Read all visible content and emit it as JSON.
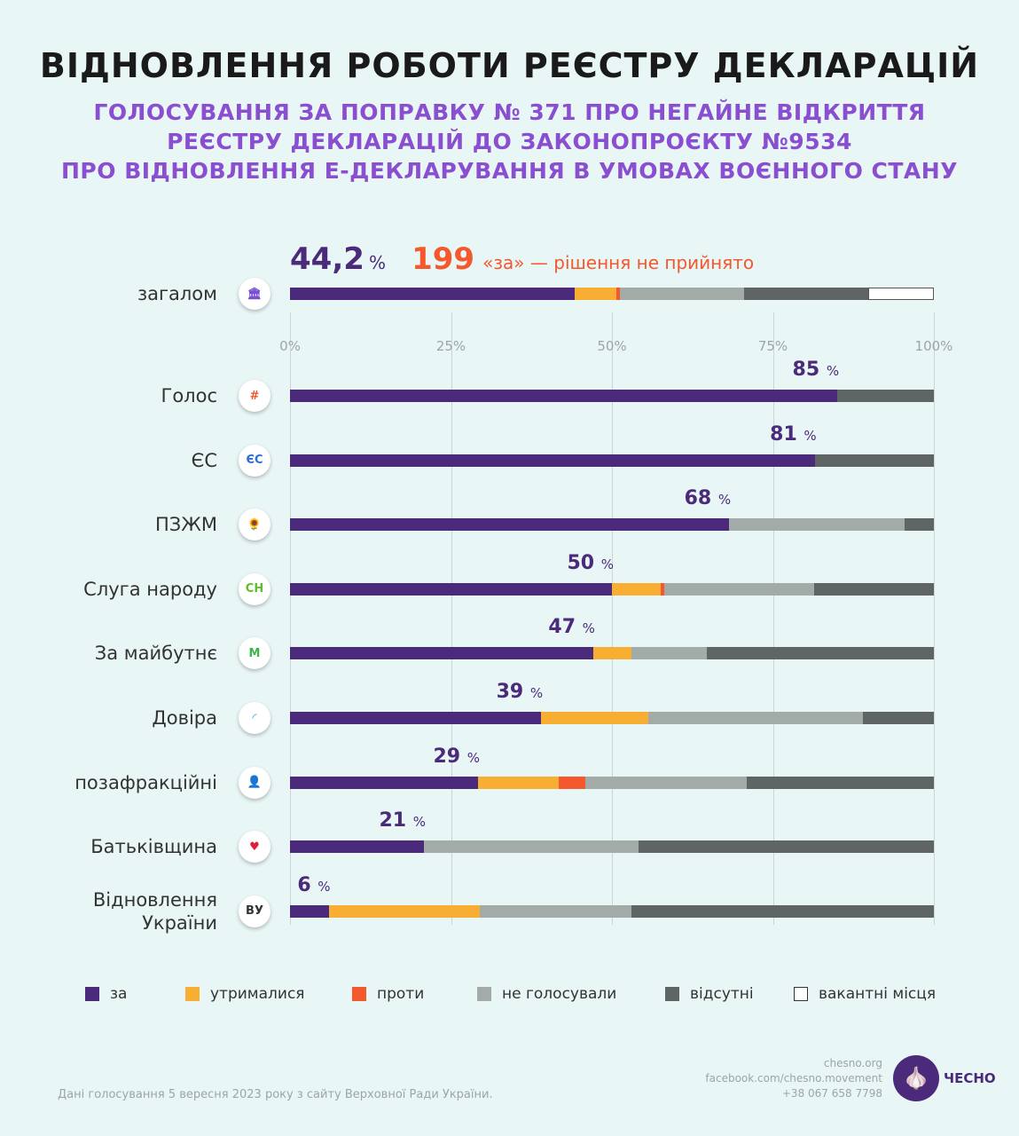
{
  "title": "ВІДНОВЛЕННЯ РОБОТИ РЕЄСТРУ ДЕКЛАРАЦІЙ",
  "subtitle": [
    "ГОЛОСУВАННЯ ЗА ПОПРАВКУ № 371 ПРО НЕГАЙНЕ ВІДКРИТТЯ",
    "РЕЄСТРУ ДЕКЛАРАЦІЙ ДО ЗАКОНОПРОЄКТУ №9534",
    "ПРО ВІДНОВЛЕННЯ Е-ДЕКЛАРУВАННЯ В УМОВАХ ВОЄННОГО СТАНУ"
  ],
  "summary": {
    "percent": "44,2",
    "percent_sign": "%",
    "votes": "199",
    "votes_text": "«за» — рішення не прийнято"
  },
  "chart_data": {
    "type": "bar",
    "orientation": "horizontal-stacked",
    "xlim": [
      0,
      100
    ],
    "ticks": [
      "0%",
      "25%",
      "50%",
      "75%",
      "100%"
    ],
    "grid": true,
    "legend_position": "bottom",
    "series_names": [
      "за",
      "утрималися",
      "проти",
      "не голосували",
      "відсутні",
      "вакантні місця"
    ],
    "colors": [
      "#4b2a7b",
      "#f7ae33",
      "#f4582c",
      "#a3aba8",
      "#5f6564",
      "#ffffff"
    ],
    "overall": {
      "label": "загалом",
      "icon": "parliament-icon",
      "values": [
        44.2,
        6.5,
        0.5,
        19.3,
        19.3,
        10.2
      ]
    },
    "rows": [
      {
        "label": "Голос",
        "icon": "golos-icon",
        "value_label": "85",
        "values": [
          85,
          0,
          0,
          0,
          15,
          0
        ]
      },
      {
        "label": "ЄС",
        "icon": "es-icon",
        "value_label": "81",
        "values": [
          81.5,
          0,
          0,
          0,
          18.5,
          0
        ]
      },
      {
        "label": "ПЗЖМ",
        "icon": "sunflower-icon",
        "value_label": "68",
        "values": [
          68.2,
          0,
          0,
          27.3,
          4.5,
          0
        ]
      },
      {
        "label": "Слуга народу",
        "icon": "sn-icon",
        "value_label": "50",
        "values": [
          50,
          7.6,
          0.5,
          23.3,
          18.6,
          0
        ]
      },
      {
        "label": "За майбутнє",
        "icon": "m-icon",
        "value_label": "47",
        "values": [
          47.1,
          5.9,
          0,
          11.8,
          35.2,
          0
        ]
      },
      {
        "label": "Довіра",
        "icon": "rainbow-icon",
        "value_label": "39",
        "values": [
          39,
          16.7,
          0,
          33.3,
          11,
          0
        ]
      },
      {
        "label": "позафракційні",
        "icon": "person-icon",
        "value_label": "29",
        "values": [
          29.2,
          12.5,
          4.2,
          25,
          29.1,
          0
        ]
      },
      {
        "label": "Батьківщина",
        "icon": "heart-icon",
        "value_label": "21",
        "values": [
          20.8,
          0,
          0,
          33.3,
          45.9,
          0
        ]
      },
      {
        "label": "Відновлення\nУкраїни",
        "icon": "vu-icon",
        "value_label": "6",
        "values": [
          6,
          23.5,
          0,
          23.5,
          47,
          0
        ]
      }
    ]
  },
  "footer": {
    "source": "Дані голосування 5 вересня 2023 року з сайту Верховної Ради України.",
    "site": "chesno.org",
    "facebook": "facebook.com/chesno.movement",
    "phone": "+38 067 658 7798",
    "logo": "ЧЕСНО"
  }
}
